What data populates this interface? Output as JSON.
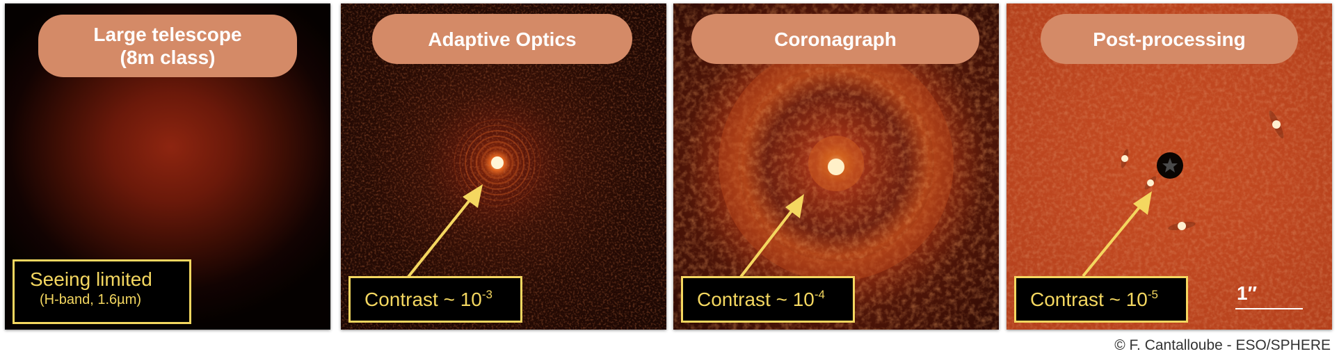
{
  "panels": [
    {
      "title_line1": "Large telescope",
      "title_line2": "(8m class)",
      "box_label": "Seeing limited",
      "box_sublabel": "(H-band, 1.6µm)"
    },
    {
      "title": "Adaptive Optics",
      "box_label": "Contrast ~ 10",
      "box_exponent": "-3"
    },
    {
      "title": "Coronagraph",
      "box_label": "Contrast ~ 10",
      "box_exponent": "-4"
    },
    {
      "title": "Post-processing",
      "box_label": "Contrast ~ 10",
      "box_exponent": "-5",
      "scale_label": "1″"
    }
  ],
  "credit": "© F. Cantalloube - ESO/SPHERE",
  "colors": {
    "title_pill": "#d48a67",
    "label_yellow": "#f4d760",
    "arrow_yellow": "#f4d760"
  }
}
